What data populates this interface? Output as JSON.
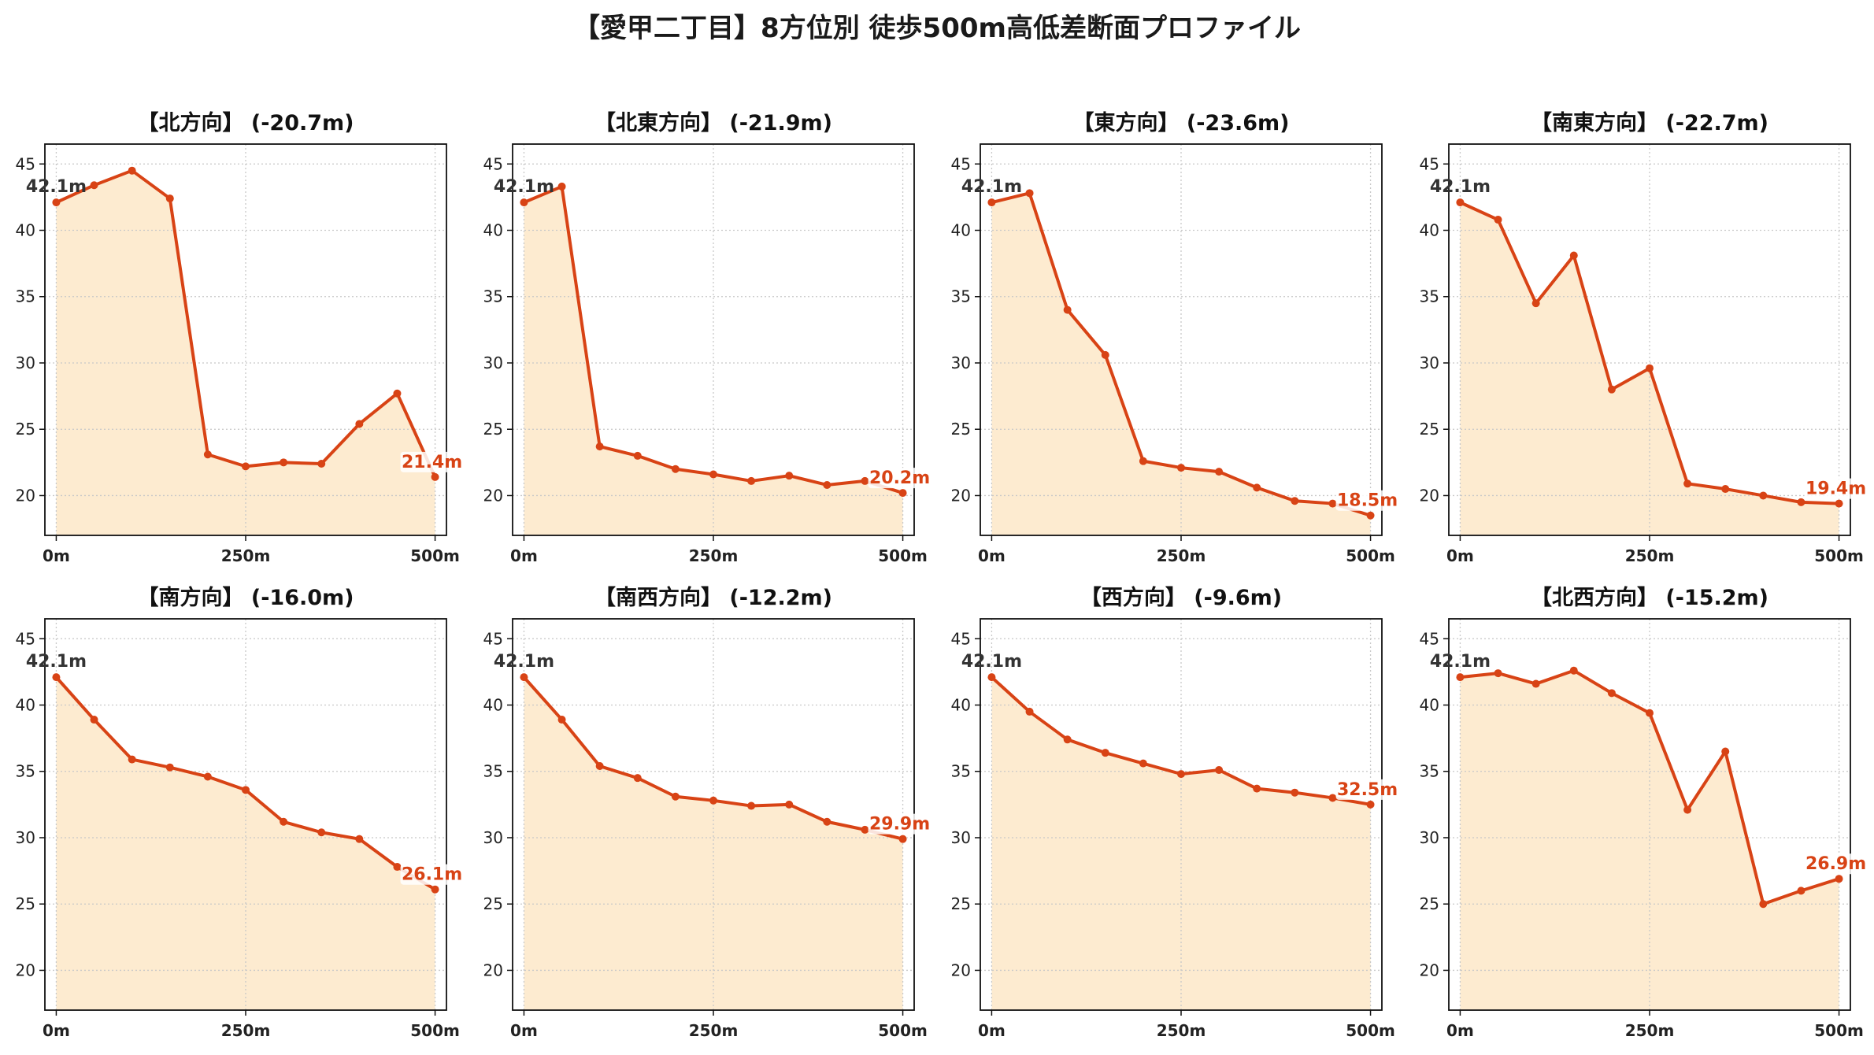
{
  "title": "【愛甲二丁目】8方位別 徒歩500m高低差断面プロファイル",
  "colors": {
    "line": "#d84315",
    "fill": "#fdebd0",
    "start_label": "#333333",
    "end_label": "#d84315"
  },
  "chart_data": [
    {
      "type": "area",
      "title": "【北方向】 (-20.7m)",
      "start_label": "42.1m",
      "end_label": "21.4m",
      "xtick_labels": [
        "0m",
        "250m",
        "500m"
      ],
      "xticks": [
        0,
        250,
        500
      ],
      "ytick_labels": [
        "20",
        "25",
        "30",
        "35",
        "40",
        "45"
      ],
      "yticks": [
        20,
        25,
        30,
        35,
        40,
        45
      ],
      "xlim": [
        -15,
        515
      ],
      "ylim": [
        17,
        46.5
      ],
      "grid": true,
      "x": [
        0,
        50,
        100,
        150,
        200,
        250,
        300,
        350,
        400,
        450,
        500
      ],
      "y": [
        42.1,
        43.4,
        44.5,
        42.4,
        23.1,
        22.2,
        22.5,
        22.4,
        25.4,
        27.7,
        21.4
      ]
    },
    {
      "type": "area",
      "title": "【北東方向】 (-21.9m)",
      "start_label": "42.1m",
      "end_label": "20.2m",
      "xtick_labels": [
        "0m",
        "250m",
        "500m"
      ],
      "xticks": [
        0,
        250,
        500
      ],
      "ytick_labels": [
        "20",
        "25",
        "30",
        "35",
        "40",
        "45"
      ],
      "yticks": [
        20,
        25,
        30,
        35,
        40,
        45
      ],
      "xlim": [
        -15,
        515
      ],
      "ylim": [
        17,
        46.5
      ],
      "grid": true,
      "x": [
        0,
        50,
        100,
        150,
        200,
        250,
        300,
        350,
        400,
        450,
        500
      ],
      "y": [
        42.1,
        43.3,
        23.7,
        23.0,
        22.0,
        21.6,
        21.1,
        21.5,
        20.8,
        21.1,
        20.2
      ]
    },
    {
      "type": "area",
      "title": "【東方向】 (-23.6m)",
      "start_label": "42.1m",
      "end_label": "18.5m",
      "xtick_labels": [
        "0m",
        "250m",
        "500m"
      ],
      "xticks": [
        0,
        250,
        500
      ],
      "ytick_labels": [
        "20",
        "25",
        "30",
        "35",
        "40",
        "45"
      ],
      "yticks": [
        20,
        25,
        30,
        35,
        40,
        45
      ],
      "xlim": [
        -15,
        515
      ],
      "ylim": [
        17,
        46.5
      ],
      "grid": true,
      "x": [
        0,
        50,
        100,
        150,
        200,
        250,
        300,
        350,
        400,
        450,
        500
      ],
      "y": [
        42.1,
        42.8,
        34.0,
        30.6,
        22.6,
        22.1,
        21.8,
        20.6,
        19.6,
        19.4,
        18.5
      ]
    },
    {
      "type": "area",
      "title": "【南東方向】 (-22.7m)",
      "start_label": "42.1m",
      "end_label": "19.4m",
      "xtick_labels": [
        "0m",
        "250m",
        "500m"
      ],
      "xticks": [
        0,
        250,
        500
      ],
      "ytick_labels": [
        "20",
        "25",
        "30",
        "35",
        "40",
        "45"
      ],
      "yticks": [
        20,
        25,
        30,
        35,
        40,
        45
      ],
      "xlim": [
        -15,
        515
      ],
      "ylim": [
        17,
        46.5
      ],
      "grid": true,
      "x": [
        0,
        50,
        100,
        150,
        200,
        250,
        300,
        350,
        400,
        450,
        500
      ],
      "y": [
        42.1,
        40.8,
        34.5,
        38.1,
        28.0,
        29.6,
        20.9,
        20.5,
        20.0,
        19.5,
        19.4
      ]
    },
    {
      "type": "area",
      "title": "【南方向】 (-16.0m)",
      "start_label": "42.1m",
      "end_label": "26.1m",
      "xtick_labels": [
        "0m",
        "250m",
        "500m"
      ],
      "xticks": [
        0,
        250,
        500
      ],
      "ytick_labels": [
        "20",
        "25",
        "30",
        "35",
        "40",
        "45"
      ],
      "yticks": [
        20,
        25,
        30,
        35,
        40,
        45
      ],
      "xlim": [
        -15,
        515
      ],
      "ylim": [
        17,
        46.5
      ],
      "grid": true,
      "x": [
        0,
        50,
        100,
        150,
        200,
        250,
        300,
        350,
        400,
        450,
        500
      ],
      "y": [
        42.1,
        38.9,
        35.9,
        35.3,
        34.6,
        33.6,
        31.2,
        30.4,
        29.9,
        27.8,
        26.1
      ]
    },
    {
      "type": "area",
      "title": "【南西方向】 (-12.2m)",
      "start_label": "42.1m",
      "end_label": "29.9m",
      "xtick_labels": [
        "0m",
        "250m",
        "500m"
      ],
      "xticks": [
        0,
        250,
        500
      ],
      "ytick_labels": [
        "20",
        "25",
        "30",
        "35",
        "40",
        "45"
      ],
      "yticks": [
        20,
        25,
        30,
        35,
        40,
        45
      ],
      "xlim": [
        -15,
        515
      ],
      "ylim": [
        17,
        46.5
      ],
      "grid": true,
      "x": [
        0,
        50,
        100,
        150,
        200,
        250,
        300,
        350,
        400,
        450,
        500
      ],
      "y": [
        42.1,
        38.9,
        35.4,
        34.5,
        33.1,
        32.8,
        32.4,
        32.5,
        31.2,
        30.6,
        29.9
      ]
    },
    {
      "type": "area",
      "title": "【西方向】 (-9.6m)",
      "start_label": "42.1m",
      "end_label": "32.5m",
      "xtick_labels": [
        "0m",
        "250m",
        "500m"
      ],
      "xticks": [
        0,
        250,
        500
      ],
      "ytick_labels": [
        "20",
        "25",
        "30",
        "35",
        "40",
        "45"
      ],
      "yticks": [
        20,
        25,
        30,
        35,
        40,
        45
      ],
      "xlim": [
        -15,
        515
      ],
      "ylim": [
        17,
        46.5
      ],
      "grid": true,
      "x": [
        0,
        50,
        100,
        150,
        200,
        250,
        300,
        350,
        400,
        450,
        500
      ],
      "y": [
        42.1,
        39.5,
        37.4,
        36.4,
        35.6,
        34.8,
        35.1,
        33.7,
        33.4,
        33.0,
        32.5
      ]
    },
    {
      "type": "area",
      "title": "【北西方向】 (-15.2m)",
      "start_label": "42.1m",
      "end_label": "26.9m",
      "xtick_labels": [
        "0m",
        "250m",
        "500m"
      ],
      "xticks": [
        0,
        250,
        500
      ],
      "ytick_labels": [
        "20",
        "25",
        "30",
        "35",
        "40",
        "45"
      ],
      "yticks": [
        20,
        25,
        30,
        35,
        40,
        45
      ],
      "xlim": [
        -15,
        515
      ],
      "ylim": [
        17,
        46.5
      ],
      "grid": true,
      "x": [
        0,
        50,
        100,
        150,
        200,
        250,
        300,
        350,
        400,
        450,
        500
      ],
      "y": [
        42.1,
        42.4,
        41.6,
        42.6,
        40.9,
        39.4,
        32.1,
        36.5,
        25.0,
        26.0,
        26.9
      ]
    }
  ]
}
